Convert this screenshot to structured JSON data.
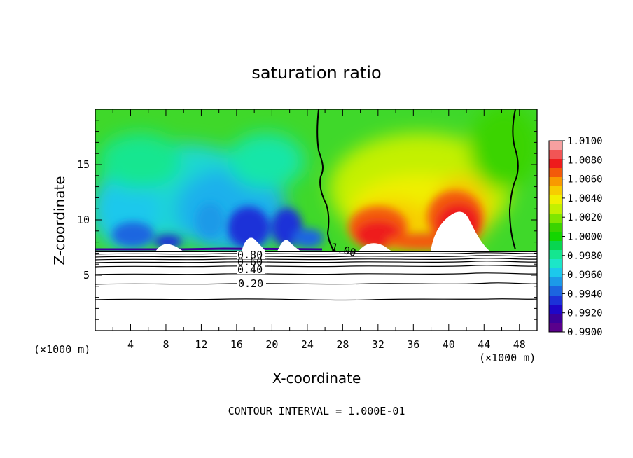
{
  "chart_data": {
    "type": "heatmap",
    "title": "saturation ratio",
    "xlabel": "X-coordinate",
    "ylabel": "Z-coordinate",
    "x_unit_left": "(×1000 m)",
    "x_unit_right": "(×1000 m)",
    "xlim": [
      0,
      50
    ],
    "ylim": [
      0,
      20
    ],
    "x_ticks": [
      4,
      8,
      12,
      16,
      20,
      24,
      28,
      32,
      36,
      40,
      44,
      48
    ],
    "y_ticks": [
      5,
      10,
      15
    ],
    "colorbar": {
      "levels": [
        "1.0100",
        "1.0080",
        "1.0060",
        "1.0040",
        "1.0020",
        "1.0000",
        "0.9980",
        "0.9960",
        "0.9940",
        "0.9920",
        "0.9900"
      ],
      "colors_top_to_bottom": [
        "#f7a0a0",
        "#f25555",
        "#ee1c1c",
        "#f35a0a",
        "#f99a00",
        "#f7cd00",
        "#f0f000",
        "#c3f000",
        "#7fe600",
        "#3ad400",
        "#14d600",
        "#08d650",
        "#14e690",
        "#1ce6c8",
        "#1cc8ec",
        "#1c9ae8",
        "#1c66e0",
        "#1c32d8",
        "#1e06c8",
        "#3c009a",
        "#5a008c"
      ]
    },
    "contour_labels": [
      "1.00",
      "0.80",
      "0.60",
      "0.40",
      "0.20"
    ],
    "contour_interval_note": "CONTOUR INTERVAL = 1.000E-01",
    "surface_z": 7.3
  }
}
